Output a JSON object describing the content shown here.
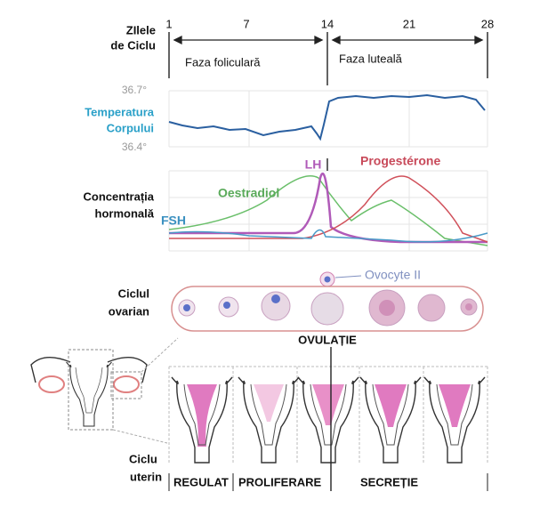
{
  "days": {
    "title": [
      "ZIlele",
      "de Ciclu"
    ],
    "ticks": [
      1,
      7,
      14,
      21,
      28
    ]
  },
  "phases": [
    "Faza foliculară",
    "Faza luteală"
  ],
  "temperature": {
    "label": [
      "Temperatura",
      "Corpului"
    ],
    "max": "36.7°",
    "min": "36.4°"
  },
  "hormones": {
    "label": [
      "Concentrația",
      "hormonală"
    ],
    "lh": "LH",
    "progesterone": "Progestérone",
    "oestradiol": "Oestradiol",
    "fsh": "FSH"
  },
  "ovarian": {
    "label": [
      "Ciclul",
      "ovarian"
    ],
    "oocyte": "Ovocyte II",
    "ovulation": "OVULAȚIE"
  },
  "uterine": {
    "label": [
      "Ciclu",
      "uterin"
    ],
    "phases": [
      "REGULAT",
      "PROLIFERARE",
      "SECREȚIE"
    ]
  }
}
